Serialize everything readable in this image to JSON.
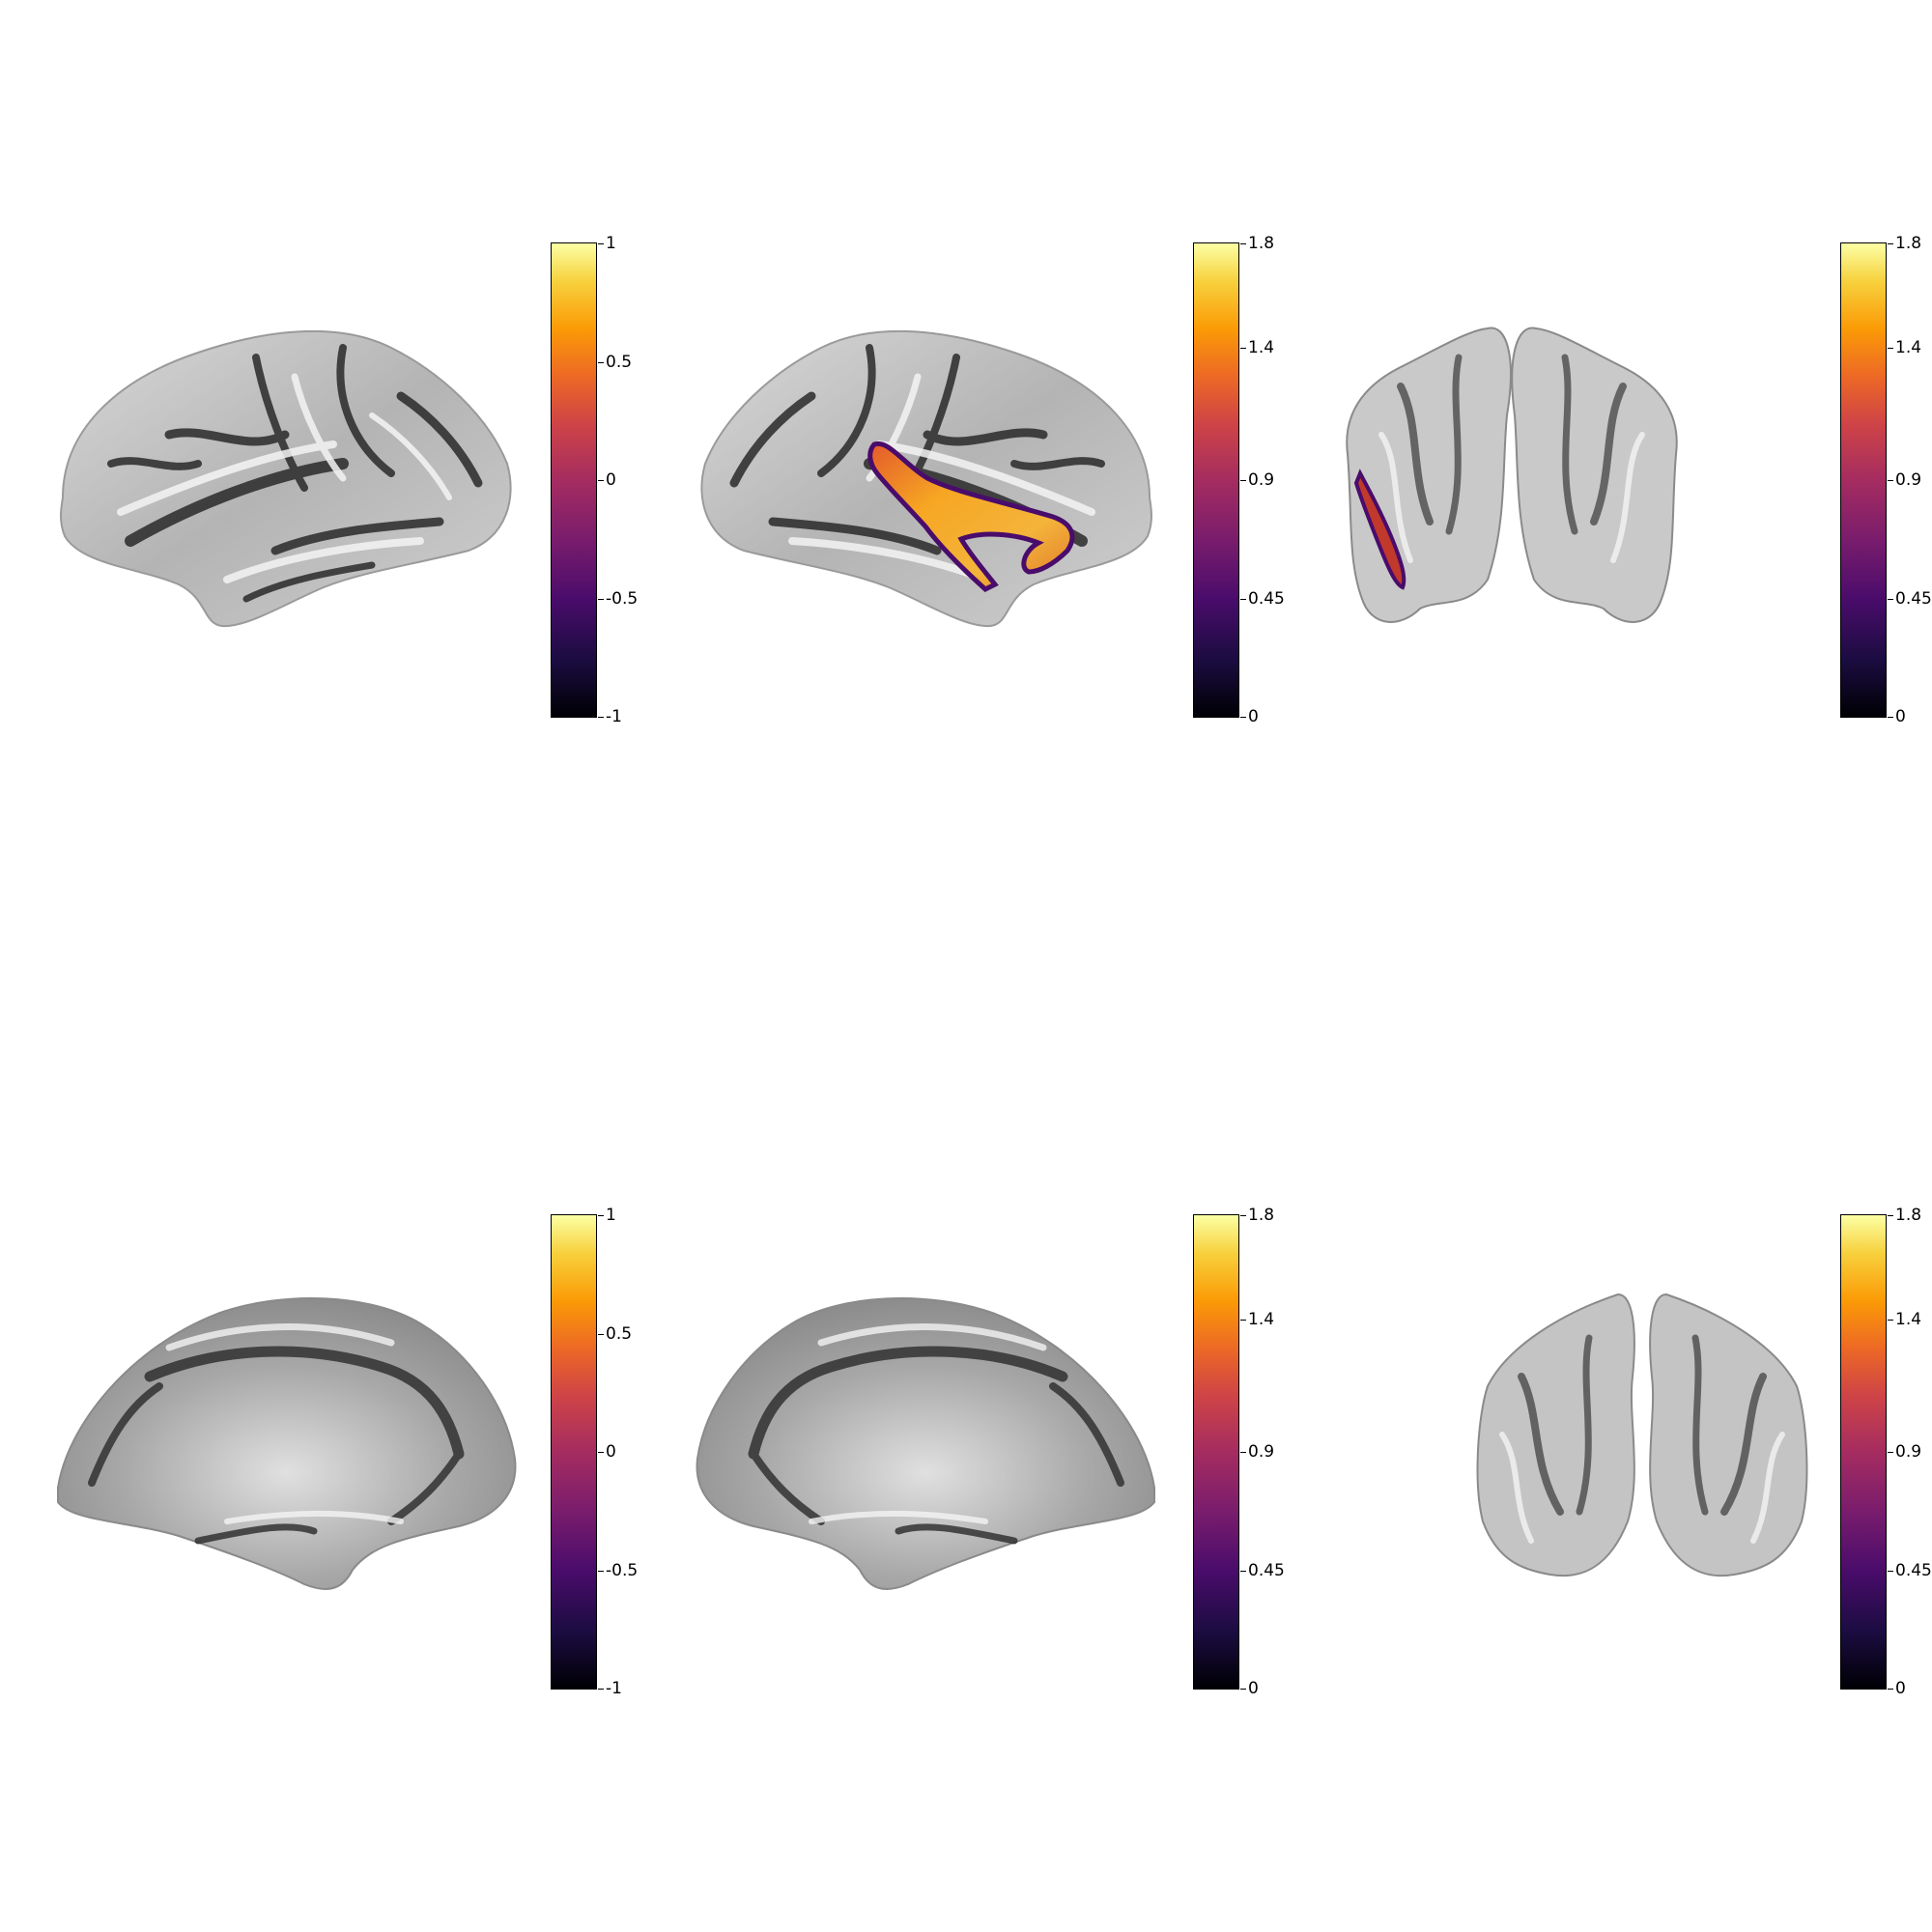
{
  "colors": {
    "background": "#ffffff",
    "cmap": "inferno",
    "sulc_dark": "#1e1e1e",
    "sulc_light": "#f2f2f2"
  },
  "panels": [
    {
      "view": "lateral",
      "hemisphere": "left",
      "overlay": false,
      "colorbar": {
        "ticks": [
          "1",
          "0.5",
          "0",
          "-0.5",
          "-1"
        ]
      }
    },
    {
      "view": "lateral",
      "hemisphere": "right",
      "overlay": true,
      "colorbar": {
        "ticks": [
          "1.8",
          "1.4",
          "0.9",
          "0.45",
          "0"
        ]
      }
    },
    {
      "view": "anterior",
      "hemisphere": "both",
      "overlay": true,
      "colorbar": {
        "ticks": [
          "1.8",
          "1.4",
          "0.9",
          "0.45",
          "0"
        ]
      }
    },
    {
      "view": "medial",
      "hemisphere": "left",
      "overlay": false,
      "colorbar": {
        "ticks": [
          "1",
          "0.5",
          "0",
          "-0.5",
          "-1"
        ]
      }
    },
    {
      "view": "medial",
      "hemisphere": "right",
      "overlay": false,
      "colorbar": {
        "ticks": [
          "1.8",
          "1.4",
          "0.9",
          "0.45",
          "0"
        ]
      }
    },
    {
      "view": "posterior",
      "hemisphere": "both",
      "overlay": false,
      "colorbar": {
        "ticks": [
          "1.8",
          "1.4",
          "0.9",
          "0.45",
          "0"
        ]
      }
    }
  ]
}
